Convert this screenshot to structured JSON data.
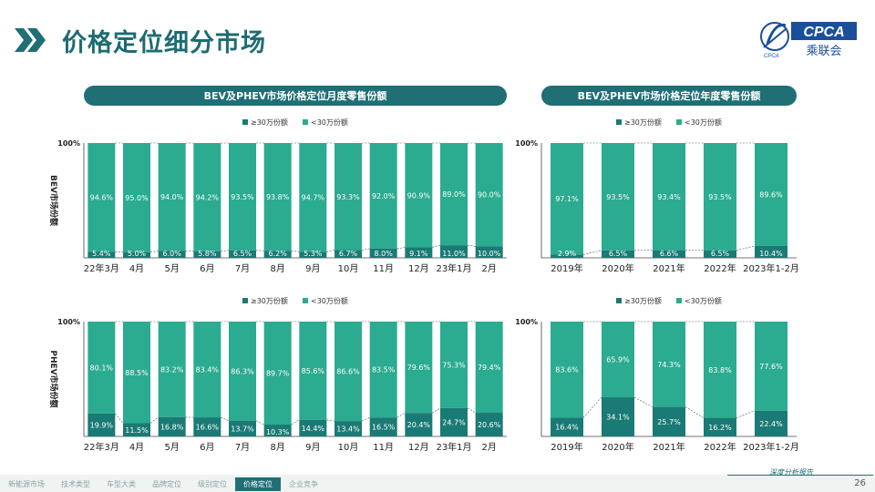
{
  "page": {
    "title": "价格定位细分市场",
    "logo_text": "CPCA",
    "logo_subtext": "乘联会",
    "logo_mark_text": "CPCA",
    "page_number": "26",
    "footer_tag": "深度分析报告",
    "nav_tabs": [
      "新能源市场",
      "技术类型",
      "车型大类",
      "品牌定位",
      "级别定位",
      "价格定位",
      "企业竞争"
    ],
    "active_tab": 5,
    "colors": {
      "teal_dark": "#1f6f75",
      "high": "#1a7a75",
      "low": "#2bab8f",
      "title": "#1d6c72"
    }
  },
  "headers": {
    "monthly": "BEV及PHEV市场价格定位月度零售份额",
    "annual": "BEV及PHEV市场价格定位年度零售份额"
  },
  "legend": {
    "high": "≥30万份额",
    "low": "<30万份额"
  },
  "row_labels": {
    "bev": "BEV市场份额",
    "phev": "PHEV市场份额"
  },
  "chart_data": [
    {
      "id": "bev-monthly",
      "type": "bar",
      "stacked": true,
      "categories": [
        "22年3月",
        "4月",
        "5月",
        "6月",
        "7月",
        "8月",
        "9月",
        "10月",
        "11月",
        "12月",
        "23年1月",
        "2月"
      ],
      "series": [
        {
          "name": "≥30万份额",
          "values": [
            5.4,
            5.0,
            6.0,
            5.8,
            6.5,
            6.2,
            5.3,
            6.7,
            8.0,
            9.1,
            11.0,
            10.0
          ]
        },
        {
          "name": "<30万份额",
          "values": [
            94.6,
            95.0,
            94.0,
            94.2,
            93.5,
            93.8,
            94.7,
            93.3,
            92.0,
            90.9,
            89.0,
            90.0
          ]
        }
      ],
      "ylabel": "BEV市场份额",
      "ylim": [
        0,
        100
      ],
      "ytick_label": "100%",
      "legend_position": "top-center"
    },
    {
      "id": "bev-annual",
      "type": "bar",
      "stacked": true,
      "categories": [
        "2019年",
        "2020年",
        "2021年",
        "2022年",
        "2023年1-2月"
      ],
      "series": [
        {
          "name": "≥30万份额",
          "values": [
            2.9,
            6.5,
            6.6,
            6.5,
            10.4
          ]
        },
        {
          "name": "<30万份额",
          "values": [
            97.1,
            93.5,
            93.4,
            93.5,
            89.6
          ]
        }
      ],
      "ylim": [
        0,
        100
      ],
      "ytick_label": "100%",
      "legend_position": "top-center"
    },
    {
      "id": "phev-monthly",
      "type": "bar",
      "stacked": true,
      "categories": [
        "22年3月",
        "4月",
        "5月",
        "6月",
        "7月",
        "8月",
        "9月",
        "10月",
        "11月",
        "12月",
        "23年1月",
        "2月"
      ],
      "series": [
        {
          "name": "≥30万份额",
          "values": [
            19.9,
            11.5,
            16.8,
            16.6,
            13.7,
            10.3,
            14.4,
            13.4,
            16.5,
            20.4,
            24.7,
            20.6
          ]
        },
        {
          "name": "<30万份额",
          "values": [
            80.1,
            88.5,
            83.2,
            83.4,
            86.3,
            89.7,
            85.6,
            86.6,
            83.5,
            79.6,
            75.3,
            79.4
          ]
        }
      ],
      "ylabel": "PHEV市场份额",
      "ylim": [
        0,
        100
      ],
      "ytick_label": "100%",
      "legend_position": "top-center"
    },
    {
      "id": "phev-annual",
      "type": "bar",
      "stacked": true,
      "categories": [
        "2019年",
        "2020年",
        "2021年",
        "2022年",
        "2023年1-2月"
      ],
      "series": [
        {
          "name": "≥30万份额",
          "values": [
            16.4,
            34.1,
            25.7,
            16.2,
            22.4
          ]
        },
        {
          "name": "<30万份额",
          "values": [
            83.6,
            65.9,
            74.3,
            83.8,
            77.6
          ]
        }
      ],
      "ylim": [
        0,
        100
      ],
      "ytick_label": "100%",
      "legend_position": "top-center"
    }
  ]
}
